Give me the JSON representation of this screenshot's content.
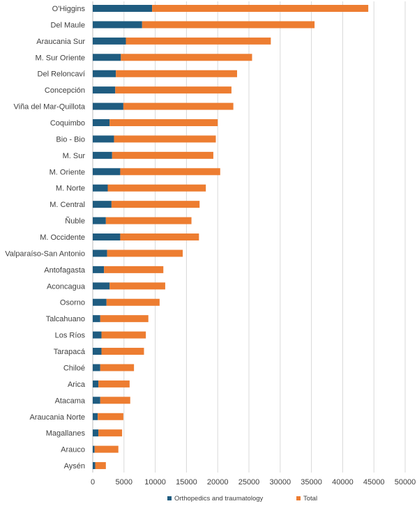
{
  "chart_data": {
    "type": "bar",
    "orientation": "horizontal",
    "stacked": true,
    "categories": [
      "O'Higgins",
      "Del Maule",
      "Araucania Sur",
      "M. Sur Oriente",
      "Del Reloncaví",
      "Concepción",
      "Viña del Mar-Quillota",
      "Coquimbo",
      "Bio - Bio",
      "M. Sur",
      "M. Oriente",
      "M. Norte",
      "M. Central",
      "Ñuble",
      "M. Occidente",
      "Valparaíso-San Antonio",
      "Antofagasta",
      "Aconcagua",
      "Osorno",
      "Talcahuano",
      "Los Ríos",
      "Tarapacá",
      "Chiloé",
      "Arica",
      "Atacama",
      "Araucania Norte",
      "Magallanes",
      "Arauco",
      "Aysén"
    ],
    "series": [
      {
        "name": "Orthopedics and traumatology",
        "color": "#1f5c80",
        "values": [
          9500,
          7900,
          5300,
          4500,
          3700,
          3600,
          4900,
          2700,
          3400,
          3100,
          4400,
          2400,
          3000,
          2100,
          4400,
          2300,
          1800,
          2700,
          2200,
          1200,
          1400,
          1400,
          1200,
          900,
          1200,
          800,
          900,
          300,
          400
        ]
      },
      {
        "name": "Total",
        "color": "#ed7d31",
        "values": [
          34600,
          27600,
          23200,
          21000,
          19400,
          18600,
          17600,
          17300,
          16300,
          16200,
          16000,
          15700,
          14100,
          13700,
          12600,
          12100,
          9500,
          8900,
          8500,
          7700,
          7100,
          6800,
          5400,
          5000,
          4800,
          4100,
          3800,
          3800,
          1700
        ]
      }
    ],
    "xlim": [
      0,
      50000
    ],
    "xticks": [
      "0",
      "5000",
      "10000",
      "15000",
      "20000",
      "25000",
      "30000",
      "35000",
      "40000",
      "45000",
      "50000"
    ],
    "grid": true,
    "legend_position": "bottom"
  }
}
